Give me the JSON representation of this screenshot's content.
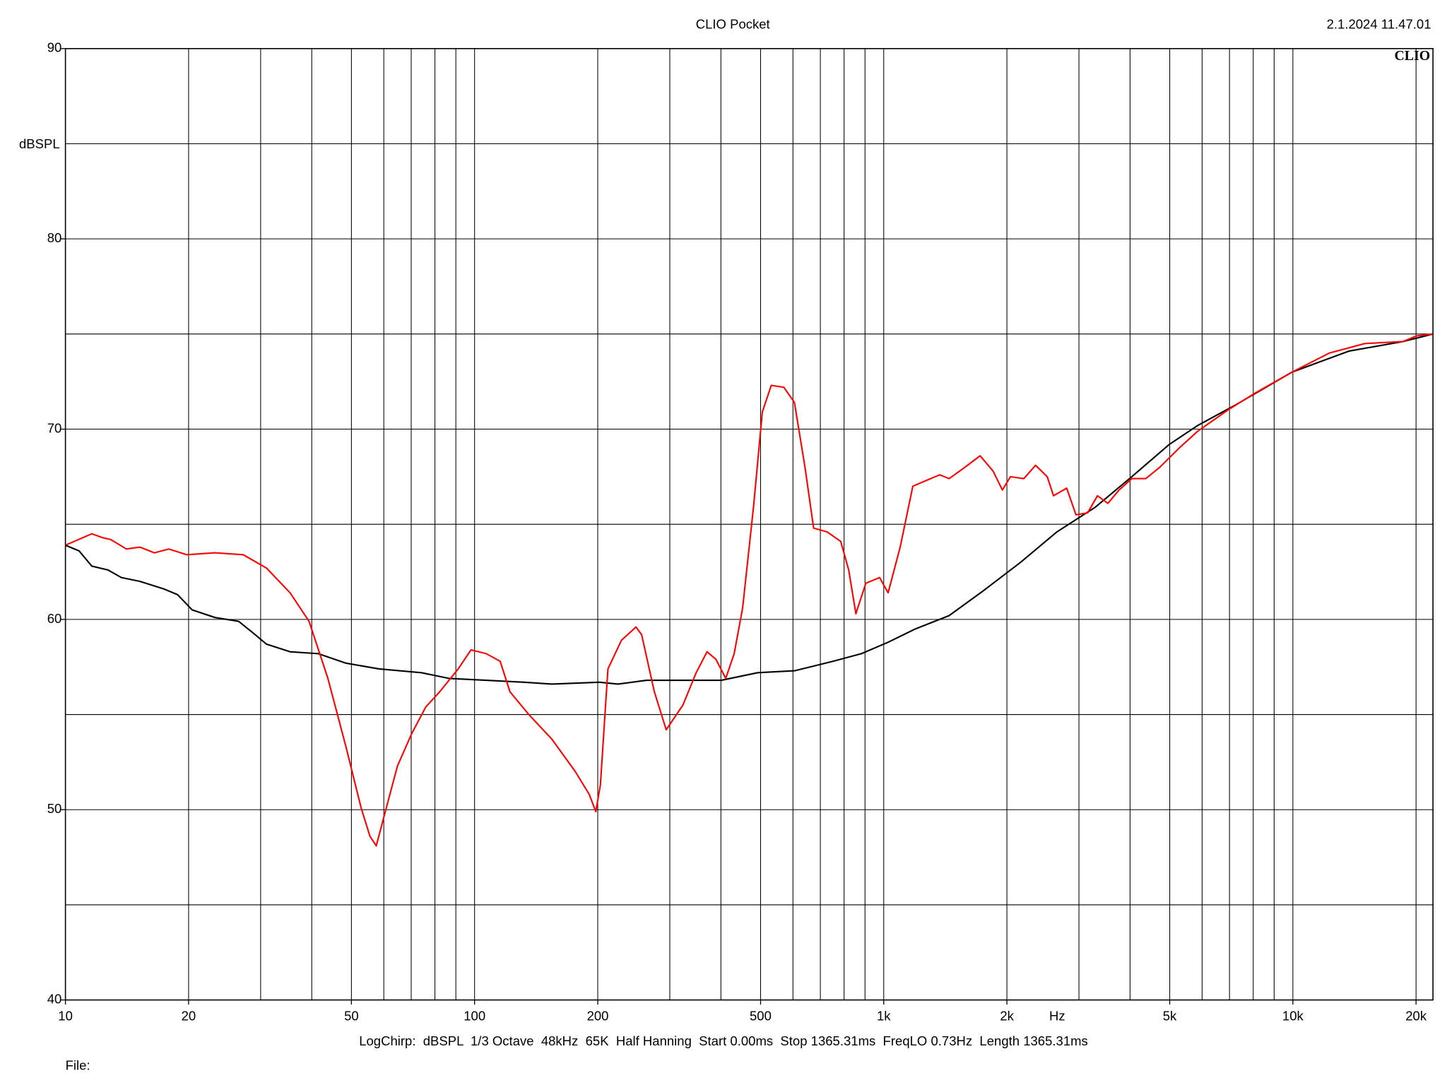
{
  "chart_data": {
    "type": "line",
    "title": "CLIO Pocket",
    "timestamp": "2.1.2024 11.47.01",
    "logo": "CLIO",
    "xlabel": "Hz",
    "ylabel": "dBSPL",
    "settings": "LogChirp:  dBSPL  1/3 Octave  48kHz  65K  Half Hanning  Start 0.00ms  Stop 1365.31ms  FreqLO 0.73Hz  Length 1365.31ms",
    "file_label": "File:",
    "xscale": "log",
    "xlim": [
      10,
      22000
    ],
    "ylim": [
      40,
      90
    ],
    "xticks": [
      10,
      20,
      50,
      100,
      200,
      500,
      {
        "value": 1000,
        "label": "1k"
      },
      {
        "value": 2000,
        "label": "2k"
      },
      {
        "value": 5000,
        "label": "5k"
      },
      {
        "value": 10000,
        "label": "10k"
      },
      {
        "value": 20000,
        "label": "20k"
      }
    ],
    "yticks": [
      40,
      50,
      60,
      70,
      80,
      90
    ],
    "xgrid": [
      20,
      30,
      40,
      50,
      60,
      70,
      80,
      90,
      100,
      200,
      300,
      400,
      500,
      600,
      700,
      800,
      900,
      1000,
      2000,
      3000,
      4000,
      5000,
      6000,
      7000,
      8000,
      9000,
      10000,
      20000
    ],
    "ygrid": [
      45,
      50,
      55,
      60,
      65,
      70,
      75,
      80,
      85
    ],
    "series": [
      {
        "color": "#000000",
        "x": [
          10,
          10.8,
          11.6,
          12.7,
          13.7,
          15.2,
          17.4,
          18.8,
          20.4,
          23.2,
          26.5,
          28.7,
          31,
          35.4,
          41.5,
          48.5,
          58.4,
          74.1,
          86.6,
          106.8,
          132,
          154.6,
          202,
          224,
          263,
          323,
          401,
          492,
          605,
          752,
          882,
          1025,
          1195,
          1445,
          1750,
          2160,
          2650,
          3290,
          4040,
          4990,
          5860,
          7280,
          9960,
          13700,
          18550,
          22000
        ],
        "values": [
          63.9,
          63.6,
          62.8,
          62.6,
          62.2,
          62.0,
          61.6,
          61.3,
          60.5,
          60.1,
          59.9,
          59.3,
          58.7,
          58.3,
          58.2,
          57.7,
          57.4,
          57.2,
          56.9,
          56.8,
          56.7,
          56.6,
          56.7,
          56.6,
          56.8,
          56.8,
          56.8,
          57.2,
          57.3,
          57.8,
          58.2,
          58.8,
          59.5,
          60.2,
          61.5,
          63.0,
          64.6,
          65.9,
          67.5,
          69.2,
          70.2,
          71.3,
          73.0,
          74.1,
          74.6,
          75.0
        ]
      },
      {
        "color": "#ff0000",
        "x": [
          10,
          11.6,
          12.3,
          12.9,
          14.1,
          15.2,
          16.5,
          17.9,
          19.8,
          23.2,
          27.2,
          31,
          35.4,
          39.4,
          43.8,
          48.5,
          52.8,
          55.5,
          57.5,
          60,
          64.8,
          70.2,
          76,
          82.2,
          91.2,
          98,
          106.8,
          115.5,
          122,
          135.7,
          154.6,
          176.3,
          190.7,
          197.8,
          203,
          211.8,
          228.5,
          248,
          256,
          275,
          294,
          323,
          348,
          370,
          389,
          411,
          431,
          452,
          481,
          505,
          531,
          570,
          605,
          642,
          674,
          727,
          785,
          821,
          855,
          904,
          977,
          1025,
          1097,
          1178,
          1270,
          1370,
          1445,
          1580,
          1720,
          1850,
          1950,
          2040,
          2200,
          2350,
          2510,
          2600,
          2800,
          2950,
          3150,
          3330,
          3530,
          3760,
          4040,
          4370,
          4730,
          5270,
          5860,
          6930,
          8090,
          9960,
          12280,
          15000,
          18550,
          20070,
          22000
        ],
        "values": [
          63.9,
          64.5,
          64.3,
          64.2,
          63.7,
          63.8,
          63.5,
          63.7,
          63.4,
          63.5,
          63.4,
          62.7,
          61.4,
          59.9,
          56.9,
          53.3,
          50.1,
          48.6,
          48.1,
          49.6,
          52.3,
          54.0,
          55.4,
          56.2,
          57.4,
          58.4,
          58.2,
          57.8,
          56.2,
          55.0,
          53.7,
          52.0,
          50.8,
          49.9,
          51.3,
          57.4,
          58.9,
          59.6,
          59.2,
          56.2,
          54.2,
          55.5,
          57.2,
          58.3,
          57.9,
          56.9,
          58.2,
          60.6,
          66.0,
          70.9,
          72.3,
          72.2,
          71.4,
          68.0,
          64.8,
          64.6,
          64.1,
          62.6,
          60.3,
          61.9,
          62.2,
          61.4,
          63.8,
          67.0,
          67.3,
          67.6,
          67.4,
          68.0,
          68.6,
          67.8,
          66.8,
          67.5,
          67.4,
          68.1,
          67.5,
          66.5,
          66.9,
          65.5,
          65.6,
          66.5,
          66.1,
          66.8,
          67.4,
          67.4,
          68.0,
          69.0,
          69.9,
          71.0,
          71.9,
          73.0,
          74.0,
          74.5,
          74.6,
          74.9,
          75.0
        ]
      }
    ]
  }
}
